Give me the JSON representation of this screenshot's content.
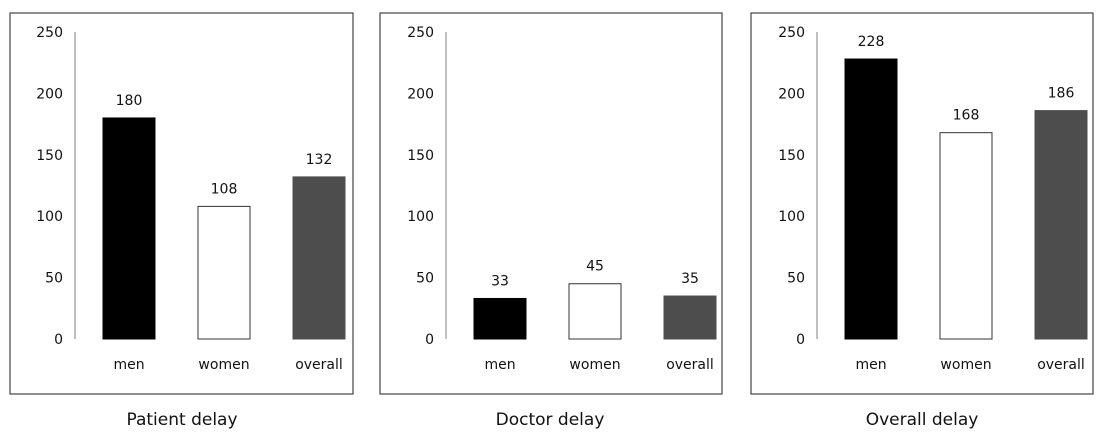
{
  "chart_data": [
    {
      "type": "bar",
      "title": "Patient delay",
      "categories": [
        "men",
        "women",
        "overall"
      ],
      "values": [
        180,
        108,
        132
      ],
      "data_labels": [
        "180",
        "108",
        "132"
      ],
      "bar_colors": [
        "#000000",
        "#ffffff",
        "#4d4d4d"
      ],
      "ylim": [
        0,
        250
      ],
      "yticks": [
        "0",
        "50",
        "100",
        "150",
        "200",
        "250"
      ],
      "grid": false
    },
    {
      "type": "bar",
      "title": "Doctor delay",
      "categories": [
        "men",
        "women",
        "overall"
      ],
      "values": [
        33,
        45,
        35
      ],
      "data_labels": [
        "33",
        "45",
        "35"
      ],
      "bar_colors": [
        "#000000",
        "#ffffff",
        "#4d4d4d"
      ],
      "ylim": [
        0,
        250
      ],
      "yticks": [
        "0",
        "50",
        "100",
        "150",
        "200",
        "250"
      ],
      "grid": false
    },
    {
      "type": "bar",
      "title": "Overall delay",
      "categories": [
        "men",
        "women",
        "overall"
      ],
      "values": [
        228,
        168,
        186
      ],
      "data_labels": [
        "228",
        "168",
        "186"
      ],
      "bar_colors": [
        "#000000",
        "#ffffff",
        "#4d4d4d"
      ],
      "ylim": [
        0,
        250
      ],
      "yticks": [
        "0",
        "50",
        "100",
        "150",
        "200",
        "250"
      ],
      "grid": false
    }
  ]
}
